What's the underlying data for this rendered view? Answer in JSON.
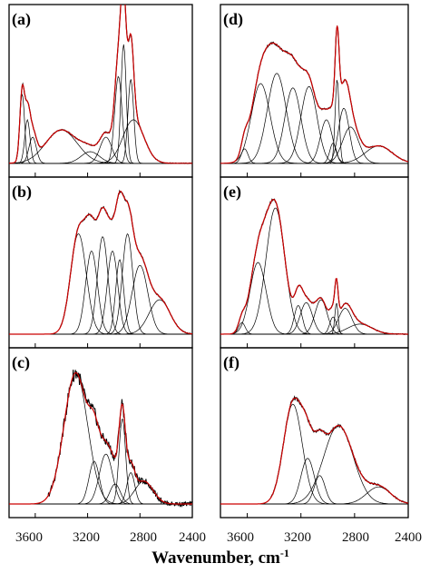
{
  "chart_data": {
    "type": "line",
    "xlabel": "Wavenumber, cm",
    "xlabel_superscript": "-1",
    "xlim": [
      3800,
      2400
    ],
    "x_inverted": true,
    "xticks": [
      3600,
      3200,
      2800,
      2400
    ],
    "y_axis": "none",
    "colors": {
      "fit": "#cc0000",
      "experimental": "#000000",
      "components": "#000000"
    },
    "panels": [
      {
        "label": "(a)",
        "components": [
          {
            "center": 3700,
            "width": 18,
            "amplitude": 0.48
          },
          {
            "center": 3660,
            "width": 20,
            "amplitude": 0.3
          },
          {
            "center": 3620,
            "width": 28,
            "amplitude": 0.18
          },
          {
            "center": 3400,
            "width": 120,
            "amplitude": 0.23
          },
          {
            "center": 3180,
            "width": 70,
            "amplitude": 0.08
          },
          {
            "center": 3060,
            "width": 45,
            "amplitude": 0.18
          },
          {
            "center": 2965,
            "width": 28,
            "amplitude": 0.6
          },
          {
            "center": 2925,
            "width": 20,
            "amplitude": 0.82
          },
          {
            "center": 2870,
            "width": 22,
            "amplitude": 0.58
          },
          {
            "center": 2850,
            "width": 80,
            "amplitude": 0.3
          }
        ]
      },
      {
        "label": "(b)",
        "components": [
          {
            "center": 3270,
            "width": 60,
            "amplitude": 0.7
          },
          {
            "center": 3170,
            "width": 45,
            "amplitude": 0.58
          },
          {
            "center": 3085,
            "width": 40,
            "amplitude": 0.68
          },
          {
            "center": 3010,
            "width": 40,
            "amplitude": 0.58
          },
          {
            "center": 2955,
            "width": 30,
            "amplitude": 0.52
          },
          {
            "center": 2895,
            "width": 40,
            "amplitude": 0.7
          },
          {
            "center": 2800,
            "width": 60,
            "amplitude": 0.48
          },
          {
            "center": 2650,
            "width": 80,
            "amplitude": 0.24
          }
        ]
      },
      {
        "label": "(c)",
        "components": [
          {
            "center": 3290,
            "width": 90,
            "amplitude": 0.92
          },
          {
            "center": 3150,
            "width": 40,
            "amplitude": 0.3
          },
          {
            "center": 3060,
            "width": 50,
            "amplitude": 0.35
          },
          {
            "center": 2990,
            "width": 40,
            "amplitude": 0.14
          },
          {
            "center": 2935,
            "width": 25,
            "amplitude": 0.6
          },
          {
            "center": 2870,
            "width": 30,
            "amplitude": 0.22
          },
          {
            "center": 2770,
            "width": 70,
            "amplitude": 0.16
          }
        ]
      },
      {
        "label": "(d)",
        "components": [
          {
            "center": 3620,
            "width": 25,
            "amplitude": 0.1
          },
          {
            "center": 3500,
            "width": 70,
            "amplitude": 0.55
          },
          {
            "center": 3380,
            "width": 70,
            "amplitude": 0.62
          },
          {
            "center": 3260,
            "width": 60,
            "amplitude": 0.52
          },
          {
            "center": 3140,
            "width": 60,
            "amplitude": 0.53
          },
          {
            "center": 3010,
            "width": 45,
            "amplitude": 0.3
          },
          {
            "center": 2960,
            "width": 25,
            "amplitude": 0.14
          },
          {
            "center": 2930,
            "width": 15,
            "amplitude": 0.58
          },
          {
            "center": 2880,
            "width": 40,
            "amplitude": 0.38
          },
          {
            "center": 2830,
            "width": 60,
            "amplitude": 0.25
          },
          {
            "center": 2620,
            "width": 100,
            "amplitude": 0.12
          }
        ]
      },
      {
        "label": "(e)",
        "components": [
          {
            "center": 3640,
            "width": 25,
            "amplitude": 0.08
          },
          {
            "center": 3520,
            "width": 60,
            "amplitude": 0.5
          },
          {
            "center": 3390,
            "width": 70,
            "amplitude": 0.88
          },
          {
            "center": 3220,
            "width": 30,
            "amplitude": 0.2
          },
          {
            "center": 3160,
            "width": 45,
            "amplitude": 0.22
          },
          {
            "center": 3050,
            "width": 45,
            "amplitude": 0.24
          },
          {
            "center": 2960,
            "width": 25,
            "amplitude": 0.12
          },
          {
            "center": 2935,
            "width": 12,
            "amplitude": 0.22
          },
          {
            "center": 2870,
            "width": 50,
            "amplitude": 0.18
          },
          {
            "center": 2760,
            "width": 90,
            "amplitude": 0.07
          }
        ]
      },
      {
        "label": "(f)",
        "components": [
          {
            "center": 3260,
            "width": 70,
            "amplitude": 0.7
          },
          {
            "center": 3150,
            "width": 50,
            "amplitude": 0.32
          },
          {
            "center": 3060,
            "width": 40,
            "amplitude": 0.2
          },
          {
            "center": 2920,
            "width": 110,
            "amplitude": 0.55
          },
          {
            "center": 2620,
            "width": 90,
            "amplitude": 0.12
          }
        ]
      }
    ]
  }
}
